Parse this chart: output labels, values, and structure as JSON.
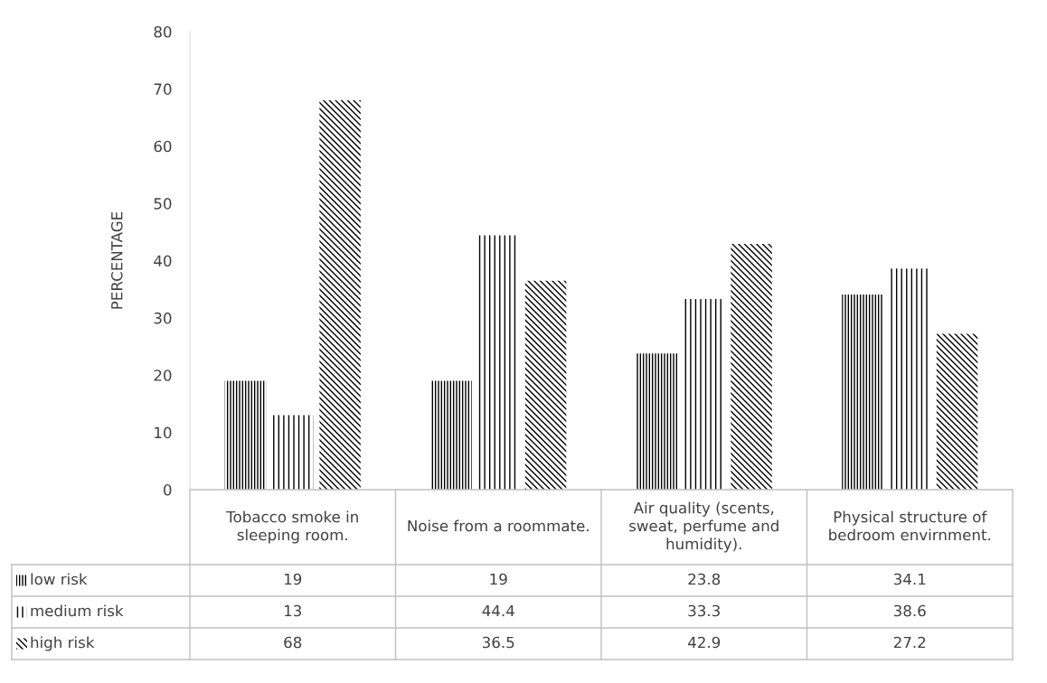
{
  "chart_data": {
    "type": "bar",
    "ylabel": "PERCENTAGE",
    "categories": [
      "Tobacco smoke in sleeping room.",
      "Noise from a roommate.",
      "Air quality (scents, sweat, perfume and humidity).",
      "Physical structure of bedroom envirnment."
    ],
    "series": [
      {
        "name": "low risk",
        "color": "#000000",
        "values": [
          19,
          19,
          23.8,
          34.1
        ]
      },
      {
        "name": "medium risk",
        "color": "#000000",
        "values": [
          13,
          44.4,
          33.3,
          38.6
        ]
      },
      {
        "name": "high risk",
        "color": "#000000",
        "values": [
          68,
          36.5,
          42.9,
          27.2
        ]
      }
    ],
    "ylim": [
      0,
      80
    ],
    "yticks": [
      0,
      10,
      20,
      30,
      40,
      50,
      60,
      70,
      80
    ],
    "grid": false,
    "legend": "bottom",
    "data_labels": true
  }
}
